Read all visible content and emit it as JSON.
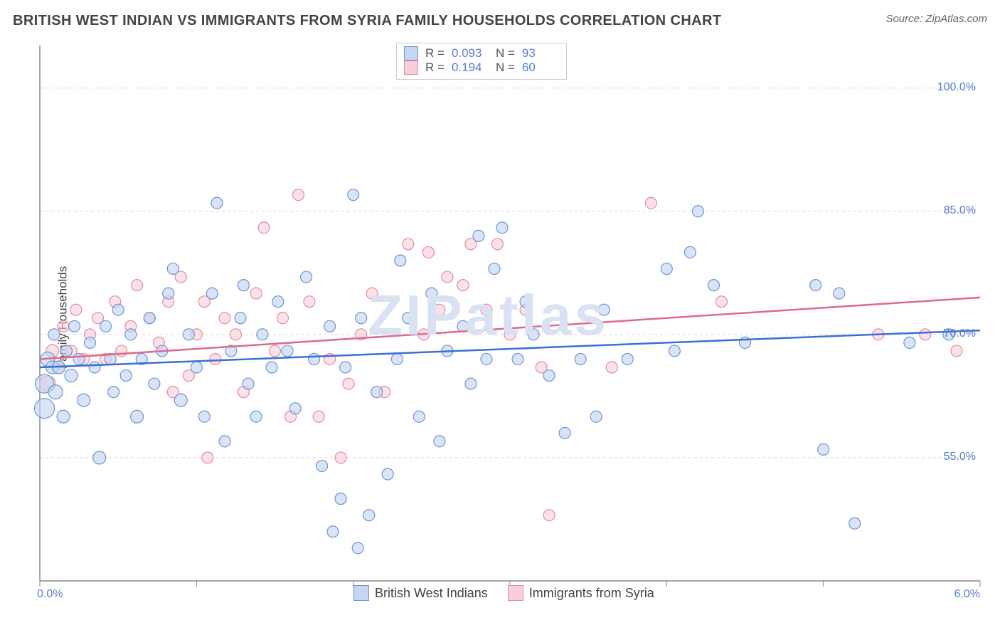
{
  "header": {
    "title": "BRITISH WEST INDIAN VS IMMIGRANTS FROM SYRIA FAMILY HOUSEHOLDS CORRELATION CHART",
    "source": "Source: ZipAtlas.com"
  },
  "y_axis_label": "Family Households",
  "watermark": {
    "text": "ZIPatlas",
    "color": "#d8e2f2",
    "fontsize": 80
  },
  "chart": {
    "type": "scatter",
    "background_color": "#ffffff",
    "axis_color": "#888888",
    "grid_color": "#d9d9d9",
    "xlim": [
      0.0,
      6.0
    ],
    "ylim": [
      40.0,
      105.0
    ],
    "x_end_labels": [
      "0.0%",
      "6.0%"
    ],
    "y_ticks": [
      55.0,
      70.0,
      85.0,
      100.0
    ],
    "y_tick_labels": [
      "55.0%",
      "70.0%",
      "85.0%",
      "100.0%"
    ],
    "x_ticks": [
      0.0,
      1.0,
      2.0,
      3.0,
      4.0,
      5.0,
      6.0
    ],
    "tick_label_color": "#5a7bd8",
    "tick_label_fontsize": 16,
    "marker_radius_min": 7,
    "marker_radius_max": 15
  },
  "series": {
    "blue": {
      "name": "British West Indians",
      "fill": "#c4d6f2",
      "stroke": "#6b95d8",
      "line_color": "#3a6fd8",
      "fill_opacity": 0.65,
      "R": "0.093",
      "N": "93",
      "regression": {
        "x1": 0.0,
        "y1": 66.0,
        "x2": 6.0,
        "y2": 70.5
      },
      "points": [
        {
          "x": 0.03,
          "y": 64,
          "r": 13
        },
        {
          "x": 0.03,
          "y": 61,
          "r": 14
        },
        {
          "x": 0.05,
          "y": 67,
          "r": 10
        },
        {
          "x": 0.08,
          "y": 66,
          "r": 9
        },
        {
          "x": 0.09,
          "y": 70,
          "r": 8
        },
        {
          "x": 0.1,
          "y": 63,
          "r": 10
        },
        {
          "x": 0.12,
          "y": 66,
          "r": 9
        },
        {
          "x": 0.15,
          "y": 60,
          "r": 9
        },
        {
          "x": 0.17,
          "y": 68,
          "r": 8
        },
        {
          "x": 0.2,
          "y": 65,
          "r": 9
        },
        {
          "x": 0.22,
          "y": 71,
          "r": 8
        },
        {
          "x": 0.25,
          "y": 67,
          "r": 8
        },
        {
          "x": 0.28,
          "y": 62,
          "r": 9
        },
        {
          "x": 0.32,
          "y": 69,
          "r": 8
        },
        {
          "x": 0.35,
          "y": 66,
          "r": 8
        },
        {
          "x": 0.38,
          "y": 55,
          "r": 9
        },
        {
          "x": 0.42,
          "y": 71,
          "r": 8
        },
        {
          "x": 0.45,
          "y": 67,
          "r": 8
        },
        {
          "x": 0.47,
          "y": 63,
          "r": 8
        },
        {
          "x": 0.5,
          "y": 73,
          "r": 8
        },
        {
          "x": 0.55,
          "y": 65,
          "r": 8
        },
        {
          "x": 0.58,
          "y": 70,
          "r": 8
        },
        {
          "x": 0.62,
          "y": 60,
          "r": 9
        },
        {
          "x": 0.65,
          "y": 67,
          "r": 8
        },
        {
          "x": 0.7,
          "y": 72,
          "r": 8
        },
        {
          "x": 0.73,
          "y": 64,
          "r": 8
        },
        {
          "x": 0.78,
          "y": 68,
          "r": 8
        },
        {
          "x": 0.82,
          "y": 75,
          "r": 8
        },
        {
          "x": 0.85,
          "y": 78,
          "r": 8
        },
        {
          "x": 0.9,
          "y": 62,
          "r": 9
        },
        {
          "x": 0.95,
          "y": 70,
          "r": 8
        },
        {
          "x": 1.0,
          "y": 66,
          "r": 8
        },
        {
          "x": 1.05,
          "y": 60,
          "r": 8
        },
        {
          "x": 1.1,
          "y": 75,
          "r": 8
        },
        {
          "x": 1.13,
          "y": 86,
          "r": 8
        },
        {
          "x": 1.18,
          "y": 57,
          "r": 8
        },
        {
          "x": 1.22,
          "y": 68,
          "r": 8
        },
        {
          "x": 1.28,
          "y": 72,
          "r": 8
        },
        {
          "x": 1.3,
          "y": 76,
          "r": 8
        },
        {
          "x": 1.33,
          "y": 64,
          "r": 8
        },
        {
          "x": 1.38,
          "y": 60,
          "r": 8
        },
        {
          "x": 1.42,
          "y": 70,
          "r": 8
        },
        {
          "x": 1.48,
          "y": 66,
          "r": 8
        },
        {
          "x": 1.52,
          "y": 74,
          "r": 8
        },
        {
          "x": 1.58,
          "y": 68,
          "r": 8
        },
        {
          "x": 1.63,
          "y": 61,
          "r": 8
        },
        {
          "x": 1.7,
          "y": 77,
          "r": 8
        },
        {
          "x": 1.75,
          "y": 67,
          "r": 8
        },
        {
          "x": 1.8,
          "y": 54,
          "r": 8
        },
        {
          "x": 1.85,
          "y": 71,
          "r": 8
        },
        {
          "x": 1.87,
          "y": 46,
          "r": 8
        },
        {
          "x": 1.92,
          "y": 50,
          "r": 8
        },
        {
          "x": 1.95,
          "y": 66,
          "r": 8
        },
        {
          "x": 2.0,
          "y": 87,
          "r": 8
        },
        {
          "x": 2.03,
          "y": 44,
          "r": 8
        },
        {
          "x": 2.05,
          "y": 72,
          "r": 8
        },
        {
          "x": 2.1,
          "y": 48,
          "r": 8
        },
        {
          "x": 2.15,
          "y": 63,
          "r": 8
        },
        {
          "x": 2.22,
          "y": 53,
          "r": 8
        },
        {
          "x": 2.28,
          "y": 67,
          "r": 8
        },
        {
          "x": 2.3,
          "y": 79,
          "r": 8
        },
        {
          "x": 2.35,
          "y": 72,
          "r": 8
        },
        {
          "x": 2.42,
          "y": 60,
          "r": 8
        },
        {
          "x": 2.5,
          "y": 75,
          "r": 8
        },
        {
          "x": 2.55,
          "y": 57,
          "r": 8
        },
        {
          "x": 2.6,
          "y": 68,
          "r": 8
        },
        {
          "x": 2.7,
          "y": 71,
          "r": 8
        },
        {
          "x": 2.75,
          "y": 64,
          "r": 8
        },
        {
          "x": 2.8,
          "y": 82,
          "r": 8
        },
        {
          "x": 2.85,
          "y": 67,
          "r": 8
        },
        {
          "x": 2.9,
          "y": 78,
          "r": 8
        },
        {
          "x": 2.95,
          "y": 83,
          "r": 8
        },
        {
          "x": 3.05,
          "y": 67,
          "r": 8
        },
        {
          "x": 3.1,
          "y": 74,
          "r": 8
        },
        {
          "x": 3.15,
          "y": 70,
          "r": 8
        },
        {
          "x": 3.25,
          "y": 65,
          "r": 8
        },
        {
          "x": 3.35,
          "y": 58,
          "r": 8
        },
        {
          "x": 3.45,
          "y": 67,
          "r": 8
        },
        {
          "x": 3.55,
          "y": 60,
          "r": 8
        },
        {
          "x": 3.6,
          "y": 73,
          "r": 8
        },
        {
          "x": 3.75,
          "y": 67,
          "r": 8
        },
        {
          "x": 4.0,
          "y": 78,
          "r": 8
        },
        {
          "x": 4.05,
          "y": 68,
          "r": 8
        },
        {
          "x": 4.15,
          "y": 80,
          "r": 8
        },
        {
          "x": 4.2,
          "y": 85,
          "r": 8
        },
        {
          "x": 4.3,
          "y": 76,
          "r": 8
        },
        {
          "x": 4.5,
          "y": 69,
          "r": 8
        },
        {
          "x": 4.95,
          "y": 76,
          "r": 8
        },
        {
          "x": 5.0,
          "y": 56,
          "r": 8
        },
        {
          "x": 5.1,
          "y": 75,
          "r": 8
        },
        {
          "x": 5.2,
          "y": 47,
          "r": 8
        },
        {
          "x": 5.55,
          "y": 69,
          "r": 8
        },
        {
          "x": 5.8,
          "y": 70,
          "r": 8
        }
      ]
    },
    "pink": {
      "name": "Immigrants from Syria",
      "fill": "#f6cfd8",
      "stroke": "#e48aa2",
      "line_color": "#e06a8c",
      "fill_opacity": 0.6,
      "R": "0.194",
      "N": "60",
      "regression": {
        "x1": 0.0,
        "y1": 67.0,
        "x2": 6.0,
        "y2": 74.5
      },
      "points": [
        {
          "x": 0.05,
          "y": 64,
          "r": 11
        },
        {
          "x": 0.08,
          "y": 68,
          "r": 9
        },
        {
          "x": 0.12,
          "y": 66,
          "r": 9
        },
        {
          "x": 0.15,
          "y": 71,
          "r": 8
        },
        {
          "x": 0.2,
          "y": 68,
          "r": 8
        },
        {
          "x": 0.23,
          "y": 73,
          "r": 8
        },
        {
          "x": 0.28,
          "y": 67,
          "r": 8
        },
        {
          "x": 0.32,
          "y": 70,
          "r": 8
        },
        {
          "x": 0.37,
          "y": 72,
          "r": 8
        },
        {
          "x": 0.42,
          "y": 67,
          "r": 8
        },
        {
          "x": 0.48,
          "y": 74,
          "r": 8
        },
        {
          "x": 0.52,
          "y": 68,
          "r": 8
        },
        {
          "x": 0.58,
          "y": 71,
          "r": 8
        },
        {
          "x": 0.62,
          "y": 76,
          "r": 8
        },
        {
          "x": 0.7,
          "y": 72,
          "r": 8
        },
        {
          "x": 0.76,
          "y": 69,
          "r": 8
        },
        {
          "x": 0.82,
          "y": 74,
          "r": 8
        },
        {
          "x": 0.85,
          "y": 63,
          "r": 8
        },
        {
          "x": 0.9,
          "y": 77,
          "r": 8
        },
        {
          "x": 0.95,
          "y": 65,
          "r": 8
        },
        {
          "x": 1.0,
          "y": 70,
          "r": 8
        },
        {
          "x": 1.05,
          "y": 74,
          "r": 8
        },
        {
          "x": 1.07,
          "y": 55,
          "r": 8
        },
        {
          "x": 1.12,
          "y": 67,
          "r": 8
        },
        {
          "x": 1.18,
          "y": 72,
          "r": 8
        },
        {
          "x": 1.25,
          "y": 70,
          "r": 8
        },
        {
          "x": 1.3,
          "y": 63,
          "r": 8
        },
        {
          "x": 1.38,
          "y": 75,
          "r": 8
        },
        {
          "x": 1.43,
          "y": 83,
          "r": 8
        },
        {
          "x": 1.5,
          "y": 68,
          "r": 8
        },
        {
          "x": 1.55,
          "y": 72,
          "r": 8
        },
        {
          "x": 1.6,
          "y": 60,
          "r": 8
        },
        {
          "x": 1.65,
          "y": 87,
          "r": 8
        },
        {
          "x": 1.72,
          "y": 74,
          "r": 8
        },
        {
          "x": 1.78,
          "y": 60,
          "r": 8
        },
        {
          "x": 1.85,
          "y": 67,
          "r": 8
        },
        {
          "x": 1.92,
          "y": 55,
          "r": 8
        },
        {
          "x": 1.97,
          "y": 64,
          "r": 8
        },
        {
          "x": 2.05,
          "y": 70,
          "r": 8
        },
        {
          "x": 2.12,
          "y": 75,
          "r": 8
        },
        {
          "x": 2.2,
          "y": 63,
          "r": 8
        },
        {
          "x": 2.35,
          "y": 81,
          "r": 8
        },
        {
          "x": 2.45,
          "y": 70,
          "r": 8
        },
        {
          "x": 2.48,
          "y": 80,
          "r": 8
        },
        {
          "x": 2.55,
          "y": 73,
          "r": 8
        },
        {
          "x": 2.6,
          "y": 77,
          "r": 8
        },
        {
          "x": 2.7,
          "y": 76,
          "r": 8
        },
        {
          "x": 2.75,
          "y": 81,
          "r": 8
        },
        {
          "x": 2.85,
          "y": 73,
          "r": 8
        },
        {
          "x": 2.92,
          "y": 81,
          "r": 8
        },
        {
          "x": 3.0,
          "y": 70,
          "r": 8
        },
        {
          "x": 3.1,
          "y": 73,
          "r": 8
        },
        {
          "x": 3.2,
          "y": 66,
          "r": 8
        },
        {
          "x": 3.25,
          "y": 48,
          "r": 8
        },
        {
          "x": 3.65,
          "y": 66,
          "r": 8
        },
        {
          "x": 3.9,
          "y": 86,
          "r": 8
        },
        {
          "x": 4.35,
          "y": 74,
          "r": 8
        },
        {
          "x": 5.35,
          "y": 70,
          "r": 8
        },
        {
          "x": 5.65,
          "y": 70,
          "r": 8
        },
        {
          "x": 5.85,
          "y": 68,
          "r": 8
        }
      ]
    }
  },
  "stats_box": {
    "border_color": "#cccccc",
    "rows": [
      {
        "swatch": "blue",
        "r_label": "R =",
        "n_label": "N ="
      },
      {
        "swatch": "pink",
        "r_label": "R =",
        "n_label": "N ="
      }
    ]
  },
  "bottom_legend": {
    "items": [
      {
        "swatch": "blue",
        "label_key": "series.blue.name"
      },
      {
        "swatch": "pink",
        "label_key": "series.pink.name"
      }
    ]
  }
}
